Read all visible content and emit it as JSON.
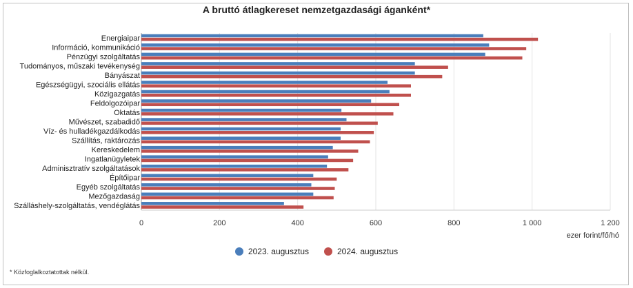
{
  "chart_data": {
    "type": "bar",
    "orientation": "horizontal",
    "title": "A bruttó átlagkereset nemzetgazdasági áganként*",
    "xlabel": "ezer forint/fő/hó",
    "ylabel": "",
    "xlim": [
      0,
      1200
    ],
    "xticks": [
      0,
      200,
      400,
      600,
      800,
      1000,
      1200
    ],
    "xtick_labels": [
      "0",
      "200",
      "400",
      "600",
      "800",
      "1 000",
      "1 200"
    ],
    "grid": true,
    "legend_position": "bottom",
    "categories": [
      "Energiaipar",
      "Információ, kommunikáció",
      "Pénzügyi szolgáltatás",
      "Tudományos, műszaki tevékenység",
      "Bányászat",
      "Egészségügyi, szociális ellátás",
      "Közigazgatás",
      "Feldolgozóipar",
      "Oktatás",
      "Művészet, szabadidő",
      "Víz- és hulladékgazdálkodás",
      "Szállítás, raktározás",
      "Kereskedelem",
      "Ingatlanügyletek",
      "Adminisztratív szolgáltatások",
      "Építőipar",
      "Egyéb szolgáltatás",
      "Mezőgazdaság",
      "Szálláshely-szolgáltatás, vendéglátás"
    ],
    "series": [
      {
        "name": "2023. augusztus",
        "color": "#4a7ebb",
        "values": [
          875,
          890,
          880,
          700,
          700,
          630,
          635,
          588,
          512,
          525,
          510,
          510,
          490,
          478,
          475,
          440,
          435,
          440,
          365
        ]
      },
      {
        "name": "2024. augusztus",
        "color": "#c0504d",
        "values": [
          1015,
          985,
          975,
          785,
          770,
          690,
          690,
          660,
          645,
          605,
          595,
          585,
          555,
          542,
          530,
          500,
          495,
          492,
          415
        ]
      }
    ]
  },
  "footnote": "* Közfoglalkoztatottak nélkül."
}
